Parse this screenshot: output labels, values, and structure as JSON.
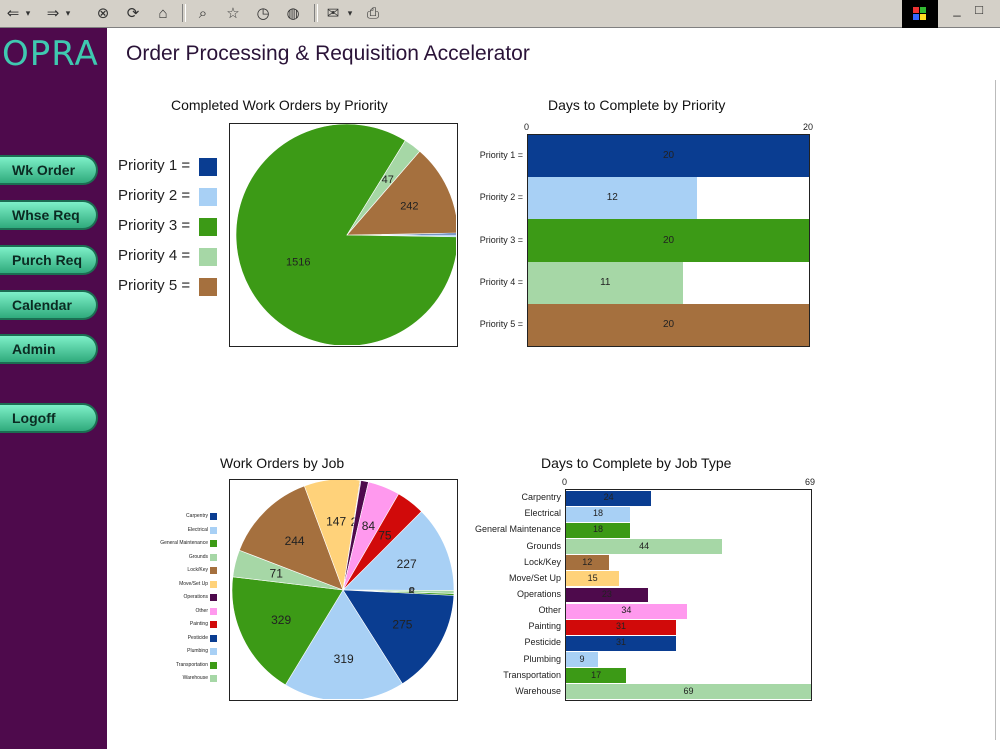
{
  "app": {
    "logo": "OPRA",
    "title": "Order Processing & Requisition Accelerator"
  },
  "toolbar": {
    "icons": [
      "back-arrow-icon",
      "back-dropdown-icon",
      "forward-arrow-icon",
      "forward-dropdown-icon",
      "stop-icon",
      "refresh-icon",
      "home-icon",
      "search-icon",
      "favorites-icon",
      "history-icon",
      "globe-icon",
      "mail-icon",
      "print-icon"
    ],
    "window_controls": [
      "_",
      "□"
    ]
  },
  "nav": [
    {
      "label": "Wk Order"
    },
    {
      "label": "Whse Req"
    },
    {
      "label": "Purch Req"
    },
    {
      "label": "Calendar"
    },
    {
      "label": "Admin"
    },
    {
      "label": "Logoff"
    }
  ],
  "charts": {
    "completed_title": "Completed Work Orders by Priority",
    "days_priority_title": "Days to Complete by Priority",
    "wo_job_title": "Work Orders by Job",
    "days_job_title": "Days to Complete by Job Type"
  },
  "chart_data": [
    {
      "type": "pie",
      "title": "Completed Work Orders by Priority",
      "labels": [
        "Priority 1 =",
        "Priority 2 =",
        "Priority 3 =",
        "Priority 4 =",
        "Priority 5 ="
      ],
      "values": [
        5,
        5,
        1516,
        47,
        242
      ],
      "shown_labels": [
        "",
        "",
        "1516",
        "47",
        "242"
      ],
      "colors": [
        "#0a3d91",
        "#a8d0f5",
        "#3c9a16",
        "#a6d7a6",
        "#a5703e"
      ],
      "legend": "left"
    },
    {
      "type": "bar",
      "orientation": "horizontal",
      "title": "Days to Complete by Priority",
      "categories": [
        "Priority 1 =",
        "Priority 2 =",
        "Priority 3 =",
        "Priority 4 =",
        "Priority 5 ="
      ],
      "values": [
        20,
        12,
        20,
        11,
        20
      ],
      "colors": [
        "#0a3d91",
        "#a8d0f5",
        "#3c9a16",
        "#a6d7a6",
        "#a5703e"
      ],
      "xlim": [
        0,
        20
      ],
      "tick_labels": [
        "0",
        "20"
      ]
    },
    {
      "type": "pie",
      "title": "Work Orders by Job",
      "labels": [
        "Carpentry",
        "Electrical",
        "General Maintenance",
        "Grounds",
        "Lock/Key",
        "Move/Set Up",
        "Operations",
        "Other",
        "Painting",
        "Pesticide",
        "Plumbing",
        "Transportation",
        "Warehouse"
      ],
      "values": [
        227,
        8,
        5,
        275,
        319,
        329,
        71,
        244,
        147,
        2,
        20,
        84,
        75
      ],
      "shown_labels": [
        "227",
        "8",
        "5",
        "275",
        "319",
        "329",
        "71",
        "244",
        "147",
        "2",
        "",
        "84",
        "75"
      ],
      "colors": [
        "#a8d0f5",
        "#a6d7a6",
        "#3c9a16",
        "#0a3d91",
        "#a8d0f5",
        "#3c9a16",
        "#a6d7a6",
        "#a5703e",
        "#ffd27a",
        "#4e0a4c",
        "#4e0a4c",
        "#ff99ee",
        "#d10a0a"
      ],
      "legend": "left",
      "legend_colors": [
        "#0a3d91",
        "#a8d0f5",
        "#3c9a16",
        "#a6d7a6",
        "#a5703e",
        "#ffd27a",
        "#4e0a4c",
        "#ff99ee",
        "#d10a0a",
        "#0a3d91",
        "#a8d0f5",
        "#3c9a16",
        "#a6d7a6"
      ]
    },
    {
      "type": "bar",
      "orientation": "horizontal",
      "title": "Days to Complete by Job Type",
      "categories": [
        "Carpentry",
        "Electrical",
        "General Maintenance",
        "Grounds",
        "Lock/Key",
        "Move/Set Up",
        "Operations",
        "Other",
        "Painting",
        "Pesticide",
        "Plumbing",
        "Transportation",
        "Warehouse"
      ],
      "values": [
        24,
        18,
        18,
        44,
        12,
        15,
        23,
        34,
        31,
        31,
        9,
        17,
        69
      ],
      "colors": [
        "#0a3d91",
        "#a8d0f5",
        "#3c9a16",
        "#a6d7a6",
        "#a5703e",
        "#ffd27a",
        "#4e0a4c",
        "#ff99ee",
        "#d10a0a",
        "#0a3d91",
        "#a8d0f5",
        "#3c9a16",
        "#a6d7a6"
      ],
      "xlim": [
        0,
        69
      ],
      "tick_labels": [
        "0",
        "69"
      ]
    }
  ]
}
